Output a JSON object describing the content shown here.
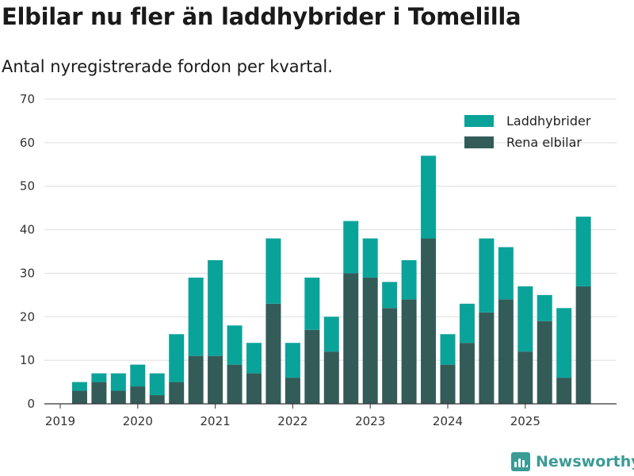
{
  "title": "Elbilar nu fler än laddhybrider i Tomelilla",
  "subtitle": "Antal nyregistrerade fordon per kvartal.",
  "brand": {
    "name": "Newsworthy",
    "icon": "newsworthy-logo-icon"
  },
  "colors": {
    "laddhybrider": "#0aa39a",
    "elbilar": "#335c59",
    "grid": "#dddddd",
    "axis": "#333333"
  },
  "chart_data": {
    "type": "bar",
    "stacked": true,
    "title": "Elbilar nu fler än laddhybrider i Tomelilla",
    "subtitle": "Antal nyregistrerade fordon per kvartal.",
    "xlabel": "",
    "ylabel": "",
    "ylim": [
      0,
      70
    ],
    "yticks": [
      0,
      10,
      20,
      30,
      40,
      50,
      60,
      70
    ],
    "categories": [
      "2019 Q1",
      "2019 Q2",
      "2019 Q3",
      "2019 Q4",
      "2020 Q1",
      "2020 Q2",
      "2020 Q3",
      "2020 Q4",
      "2021 Q1",
      "2021 Q2",
      "2021 Q3",
      "2021 Q4",
      "2022 Q1",
      "2022 Q2",
      "2022 Q3",
      "2022 Q4",
      "2023 Q1",
      "2023 Q2",
      "2023 Q3",
      "2023 Q4",
      "2024 Q1",
      "2024 Q2",
      "2024 Q3",
      "2024 Q4",
      "2025 Q1",
      "2025 Q2",
      "2025 Q3",
      "2025 Q4"
    ],
    "x_tick_labels": [
      "2019",
      "2020",
      "2021",
      "2022",
      "2023",
      "2024",
      "2025"
    ],
    "legend_position": "top-right",
    "series": [
      {
        "name": "Rena elbilar",
        "color": "#335c59",
        "values": [
          null,
          3,
          5,
          3,
          4,
          2,
          5,
          11,
          11,
          9,
          7,
          23,
          6,
          17,
          12,
          30,
          29,
          22,
          24,
          38,
          9,
          14,
          21,
          24,
          12,
          19,
          6,
          27
        ]
      },
      {
        "name": "Laddhybrider",
        "color": "#0aa39a",
        "values": [
          null,
          2,
          2,
          4,
          5,
          5,
          11,
          18,
          22,
          9,
          7,
          15,
          8,
          12,
          8,
          12,
          9,
          6,
          9,
          19,
          7,
          9,
          17,
          12,
          15,
          6,
          16,
          16
        ]
      }
    ],
    "legend": [
      "Laddhybrider",
      "Rena elbilar"
    ]
  }
}
